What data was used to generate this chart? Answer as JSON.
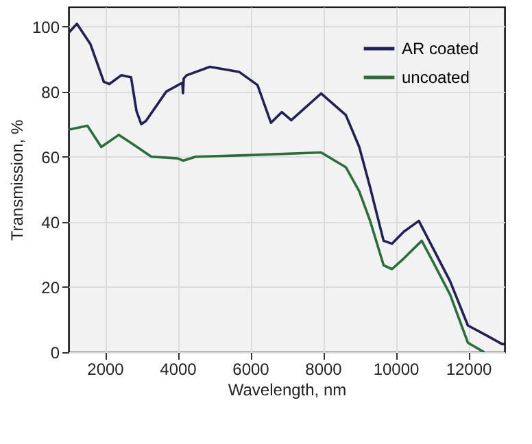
{
  "chart_data": {
    "type": "line",
    "xlabel": "Wavelength, nm",
    "ylabel": "Transmission, %",
    "xlim": [
      1000,
      13000
    ],
    "xticks": [
      2000,
      4000,
      6000,
      8000,
      10000,
      12000
    ],
    "ylim": [
      0,
      106
    ],
    "yticks": [
      0,
      20,
      40,
      60,
      80,
      100
    ],
    "grid": true,
    "legend": "top right",
    "marker": "none",
    "line_style": "solid",
    "series": [
      {
        "name": "AR coated",
        "color": "#1f2157",
        "x": [
          1000,
          1230,
          1600,
          1970,
          2120,
          2450,
          2720,
          2870,
          3000,
          3130,
          3690,
          4130,
          4150,
          4170,
          4250,
          4890,
          5700,
          6200,
          6570,
          6870,
          7130,
          7950,
          8630,
          9000,
          9300,
          9670,
          9900,
          10230,
          10640,
          10980,
          11500,
          11990,
          12480,
          12930,
          13000
        ],
        "values": [
          98,
          100.8,
          94.6,
          83,
          82.3,
          85,
          84.4,
          74,
          70,
          71,
          80,
          82.7,
          79.5,
          84,
          85,
          87.6,
          86,
          82,
          70.4,
          73.7,
          71.2,
          79.4,
          72.8,
          63,
          50.6,
          34.2,
          33.3,
          37,
          40.3,
          33,
          21.8,
          8.2,
          5.3,
          2.5,
          2.5
        ]
      },
      {
        "name": "uncoated",
        "color": "#2a6e3a",
        "x": [
          1000,
          1520,
          1900,
          2380,
          2830,
          3280,
          4000,
          4150,
          4500,
          6000,
          7950,
          8630,
          9000,
          9300,
          9670,
          9900,
          10230,
          10720,
          10980,
          11500,
          11990,
          12440
        ],
        "values": [
          68.3,
          69.5,
          63,
          66.7,
          63.4,
          60,
          59.5,
          58.8,
          60,
          60.5,
          61.3,
          56.8,
          49.4,
          40.3,
          26.7,
          25.5,
          28.8,
          34.2,
          28.8,
          17.7,
          2.9,
          0
        ]
      }
    ]
  }
}
